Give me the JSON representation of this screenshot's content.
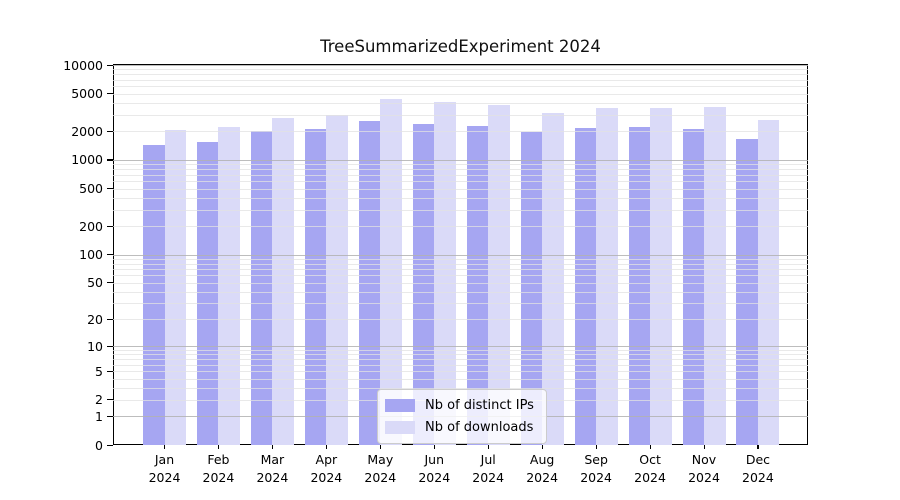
{
  "chart_data": {
    "type": "bar",
    "title": "TreeSummarizedExperiment 2024",
    "xlabel": "",
    "ylabel": "",
    "yscale": "symlog-log10(v+1)",
    "ylim": [
      0,
      10000
    ],
    "y_ticks": [
      0,
      1,
      2,
      5,
      10,
      20,
      50,
      100,
      200,
      500,
      1000,
      2000,
      5000,
      10000
    ],
    "grid": true,
    "legend_position": "lower center",
    "categories": [
      "Jan 2024",
      "Feb 2024",
      "Mar 2024",
      "Apr 2024",
      "May 2024",
      "Jun 2024",
      "Jul 2024",
      "Aug 2024",
      "Sep 2024",
      "Oct 2024",
      "Nov 2024",
      "Dec 2024"
    ],
    "series": [
      {
        "name": "Nb of distinct IPs",
        "color": "#a6a6f2",
        "values": [
          1450,
          1550,
          2000,
          2100,
          2600,
          2400,
          2300,
          1950,
          2150,
          2200,
          2100,
          1650
        ]
      },
      {
        "name": "Nb of downloads",
        "color": "#dadaf8",
        "values": [
          2050,
          2250,
          2800,
          2950,
          4350,
          4100,
          3750,
          3150,
          3500,
          3550,
          3600,
          2650
        ]
      }
    ]
  }
}
